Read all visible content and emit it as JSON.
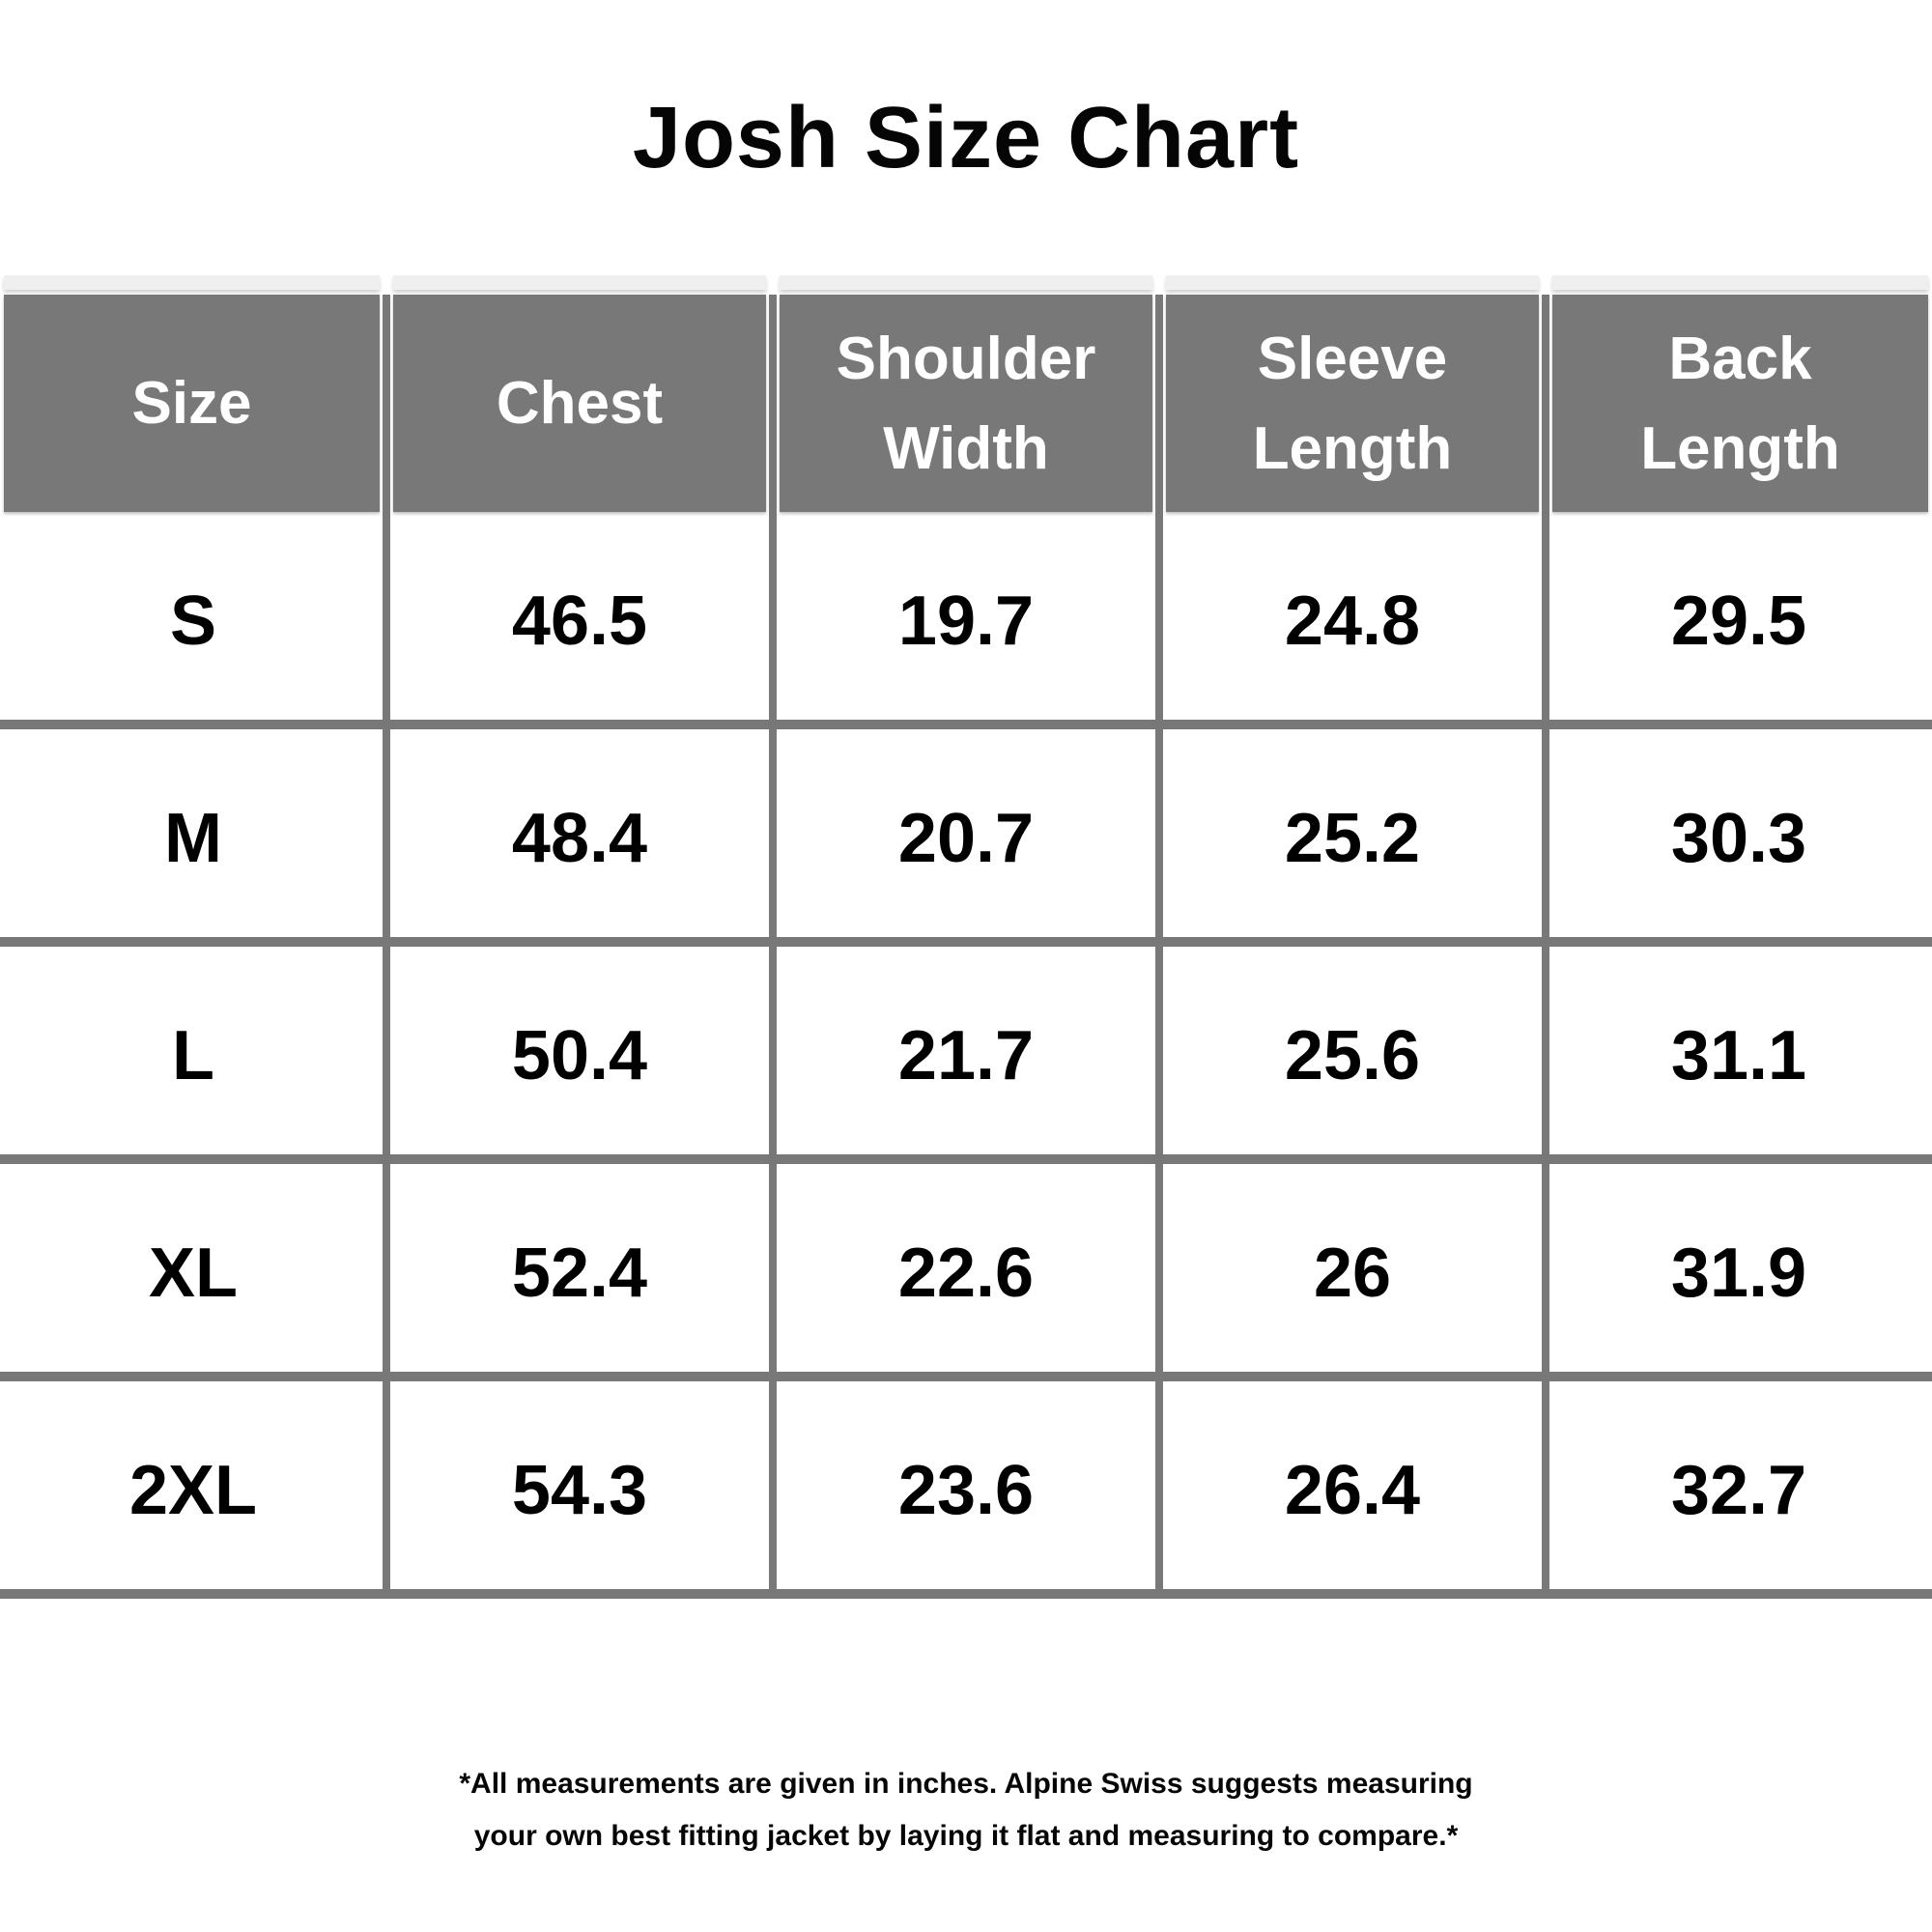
{
  "page": {
    "title": "Josh Size Chart"
  },
  "table": {
    "headers": [
      "Size",
      "Chest",
      "Shoulder Width",
      "Sleeve Length",
      "Back Length"
    ],
    "rows": [
      {
        "cells": [
          "S",
          "46.5",
          "19.7",
          "24.8",
          "29.5"
        ]
      },
      {
        "cells": [
          "M",
          "48.4",
          "20.7",
          "25.2",
          "30.3"
        ]
      },
      {
        "cells": [
          "L",
          "50.4",
          "21.7",
          "25.6",
          "31.1"
        ]
      },
      {
        "cells": [
          "XL",
          "52.4",
          "22.6",
          "26",
          "31.9"
        ]
      },
      {
        "cells": [
          "2XL",
          "54.3",
          "23.6",
          "26.4",
          "32.7"
        ]
      }
    ]
  },
  "footer": {
    "line1": "*All measurements are given in inches.  Alpine Swiss suggests measuring",
    "line2": "your own best fitting jacket by laying it flat and measuring to compare.*"
  },
  "colors": {
    "header_bg": "#787878",
    "header_text": "#ffffff",
    "grid_line": "#787878",
    "header_top_strip": "#efefef",
    "body_text": "#000000",
    "background": "#ffffff"
  },
  "chart_data": {
    "type": "table",
    "title": "Josh Size Chart",
    "columns": [
      "Size",
      "Chest",
      "Shoulder Width",
      "Sleeve Length",
      "Back Length"
    ],
    "rows": [
      [
        "S",
        46.5,
        19.7,
        24.8,
        29.5
      ],
      [
        "M",
        48.4,
        20.7,
        25.2,
        30.3
      ],
      [
        "L",
        50.4,
        21.7,
        25.6,
        31.1
      ],
      [
        "XL",
        52.4,
        22.6,
        26,
        31.9
      ],
      [
        "2XL",
        54.3,
        23.6,
        26.4,
        32.7
      ]
    ],
    "units": "inches",
    "footnote": "*All measurements are given in inches.  Alpine Swiss suggests measuring your own best fitting jacket by laying it flat and measuring to compare.*"
  }
}
